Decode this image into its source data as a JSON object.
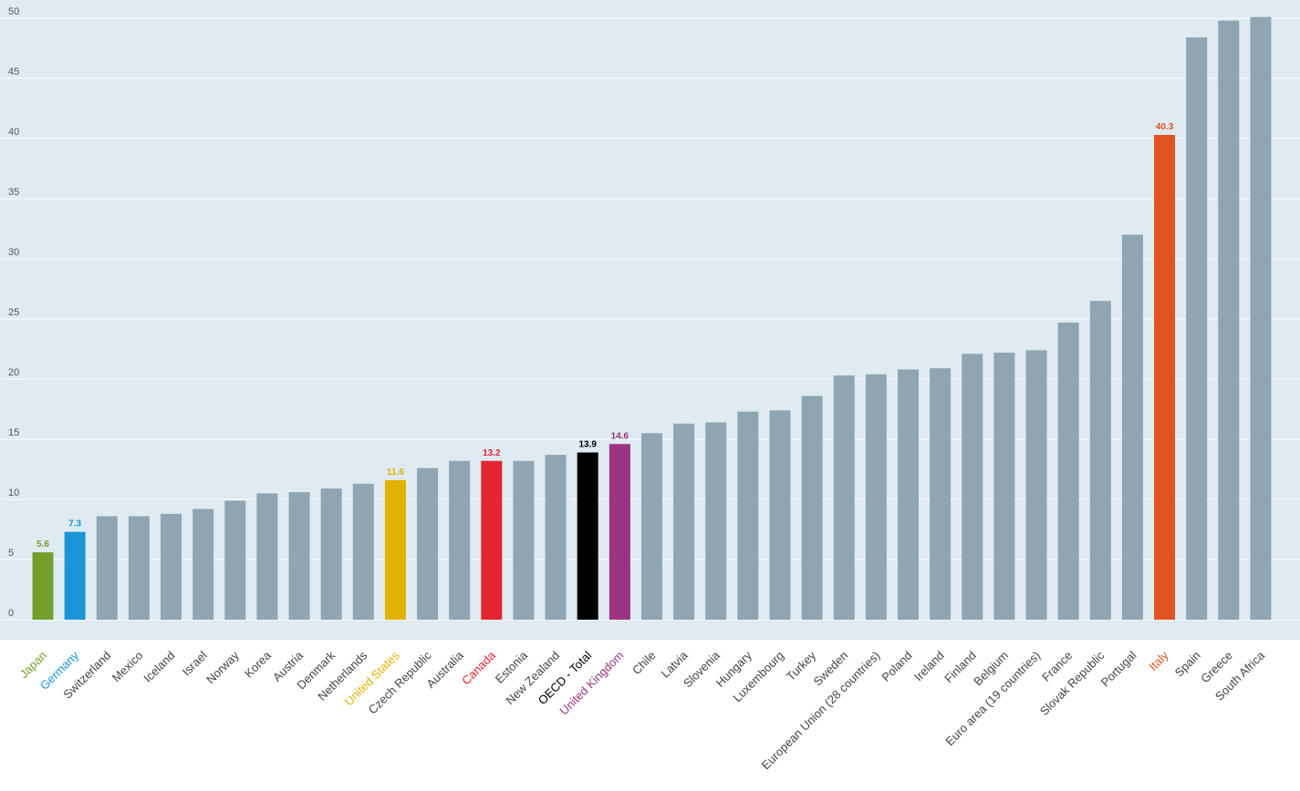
{
  "chart_data": {
    "type": "bar",
    "ylim": [
      0,
      50
    ],
    "yticks": [
      0,
      5,
      10,
      15,
      20,
      25,
      30,
      35,
      40,
      45,
      50
    ],
    "grid": true,
    "default_color": "#8fa5b2",
    "background_color": "#dfeaf1",
    "categories": [
      "Japan",
      "Germany",
      "Switzerland",
      "Mexico",
      "Iceland",
      "Israel",
      "Norway",
      "Korea",
      "Austria",
      "Denmark",
      "Netherlands",
      "United States",
      "Czech Republic",
      "Australia",
      "Canada",
      "Estonia",
      "New Zealand",
      "OECD - Total",
      "United Kingdom",
      "Chile",
      "Latvia",
      "Slovenia",
      "Hungary",
      "Luxembourg",
      "Turkey",
      "Sweden",
      "European Union (28 countries)",
      "Poland",
      "Ireland",
      "Finland",
      "Belgium",
      "Euro area (19 countries)",
      "France",
      "Slovak Republic",
      "Portugal",
      "Italy",
      "Spain",
      "Greece",
      "South Africa"
    ],
    "values": [
      5.6,
      7.3,
      8.6,
      8.6,
      8.8,
      9.2,
      9.9,
      10.5,
      10.6,
      10.9,
      11.3,
      11.6,
      12.6,
      13.2,
      13.2,
      13.2,
      13.7,
      13.9,
      14.6,
      15.5,
      16.3,
      16.4,
      17.3,
      17.4,
      18.6,
      20.3,
      20.4,
      20.8,
      20.9,
      22.1,
      22.2,
      22.4,
      24.7,
      26.5,
      32.0,
      40.3,
      48.4,
      49.8,
      50.1
    ],
    "highlights": [
      {
        "index": 0,
        "color": "#72a12a",
        "label": "5.6"
      },
      {
        "index": 1,
        "color": "#1a96d8",
        "label": "7.3"
      },
      {
        "index": 11,
        "color": "#e2b200",
        "label": "11.6"
      },
      {
        "index": 14,
        "color": "#e3262f",
        "label": "13.2"
      },
      {
        "index": 17,
        "color": "#000000",
        "label": "13.9"
      },
      {
        "index": 18,
        "color": "#9b3383",
        "label": "14.6"
      },
      {
        "index": 35,
        "color": "#e05423",
        "label": "40.3"
      }
    ]
  }
}
